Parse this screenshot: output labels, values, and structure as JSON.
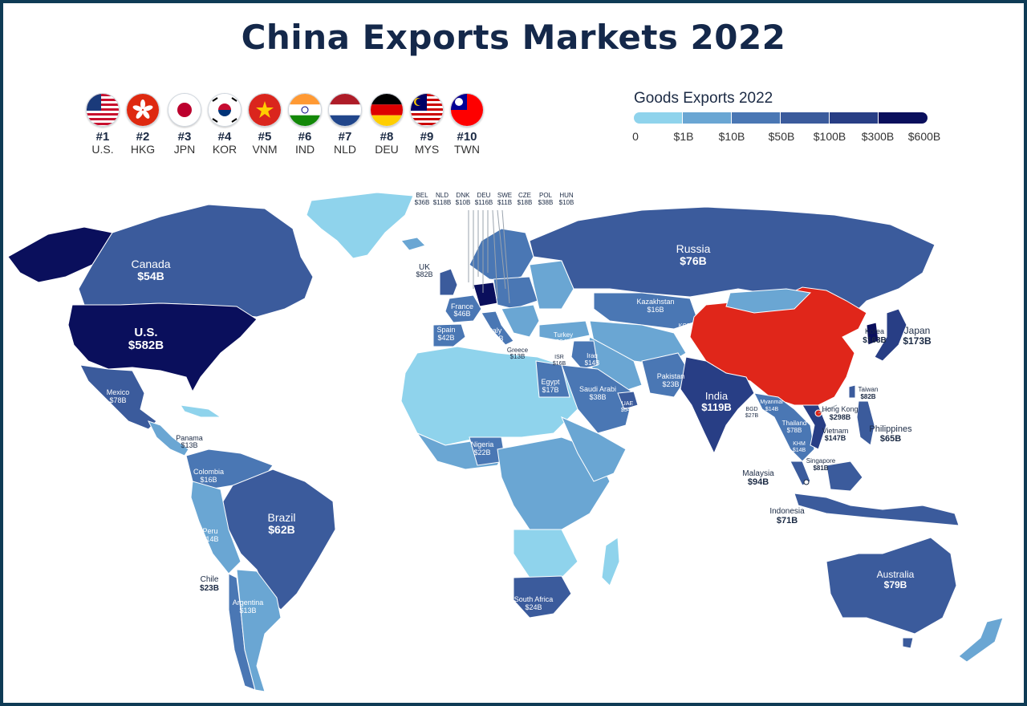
{
  "title": "China Exports Markets 2022",
  "top_markets": [
    {
      "rank": "#1",
      "code": "U.S.",
      "flag": "us-flag-icon"
    },
    {
      "rank": "#2",
      "code": "HKG",
      "flag": "hong-kong-flag-icon"
    },
    {
      "rank": "#3",
      "code": "JPN",
      "flag": "japan-flag-icon"
    },
    {
      "rank": "#4",
      "code": "KOR",
      "flag": "south-korea-flag-icon"
    },
    {
      "rank": "#5",
      "code": "VNM",
      "flag": "vietnam-flag-icon"
    },
    {
      "rank": "#6",
      "code": "IND",
      "flag": "india-flag-icon"
    },
    {
      "rank": "#7",
      "code": "NLD",
      "flag": "netherlands-flag-icon"
    },
    {
      "rank": "#8",
      "code": "DEU",
      "flag": "germany-flag-icon"
    },
    {
      "rank": "#9",
      "code": "MYS",
      "flag": "malaysia-flag-icon"
    },
    {
      "rank": "#10",
      "code": "TWN",
      "flag": "taiwan-flag-icon"
    }
  ],
  "legend": {
    "title": "Goods Exports 2022",
    "ticks": [
      "0",
      "$1B",
      "$10B",
      "$50B",
      "$100B",
      "$300B",
      "$600B"
    ],
    "colors": [
      "#8fd3ec",
      "#6aa6d3",
      "#4a77b4",
      "#3b5b9c",
      "#283e85",
      "#0a0f5c"
    ]
  },
  "highlight_color": "#e0261a",
  "europe_callouts": [
    {
      "code": "BEL",
      "value": "$36B"
    },
    {
      "code": "NLD",
      "value": "$118B"
    },
    {
      "code": "DNK",
      "value": "$10B"
    },
    {
      "code": "DEU",
      "value": "$116B"
    },
    {
      "code": "SWE",
      "value": "$11B"
    },
    {
      "code": "CZE",
      "value": "$18B"
    },
    {
      "code": "POL",
      "value": "$38B"
    },
    {
      "code": "HUN",
      "value": "$10B"
    }
  ],
  "countries": {
    "canada": {
      "name": "Canada",
      "value": "$54B"
    },
    "us": {
      "name": "U.S.",
      "value": "$582B"
    },
    "mexico": {
      "name": "Mexico",
      "value": "$78B"
    },
    "panama": {
      "name": "Panama",
      "value": "$13B"
    },
    "colombia": {
      "name": "Colombia",
      "value": "$16B"
    },
    "brazil": {
      "name": "Brazil",
      "value": "$62B"
    },
    "peru": {
      "name": "Peru",
      "value": "$14B"
    },
    "chile": {
      "name": "Chile",
      "value": "$23B"
    },
    "argentina": {
      "name": "Argentina",
      "value": "$13B"
    },
    "uk": {
      "name": "UK",
      "value": "$82B"
    },
    "france": {
      "name": "France",
      "value": "$46B"
    },
    "spain": {
      "name": "Spain",
      "value": "$42B"
    },
    "italy": {
      "name": "Italy",
      "value": "$51B"
    },
    "greece": {
      "name": "Greece",
      "value": "$13B"
    },
    "turkey": {
      "name": "Turkey",
      "value": "$34B"
    },
    "isr": {
      "name": "ISR",
      "value": "$16B"
    },
    "iraq": {
      "name": "Iraq",
      "value": "$14B"
    },
    "egypt": {
      "name": "Egypt",
      "value": "$17B"
    },
    "saudi": {
      "name": "Saudi Arabi",
      "value": "$38B"
    },
    "uae": {
      "name": "UAE",
      "value": "$54B"
    },
    "nigeria": {
      "name": "Nigeria",
      "value": "$22B"
    },
    "south_africa": {
      "name": "South Africa",
      "value": "$24B"
    },
    "russia": {
      "name": "Russia",
      "value": "$76B"
    },
    "kazakhstan": {
      "name": "Kazakhstan",
      "value": "$16B"
    },
    "kgz": {
      "name": "KGZ",
      "value": "$15B"
    },
    "pakistan": {
      "name": "Pakistan",
      "value": "$23B"
    },
    "india": {
      "name": "India",
      "value": "$119B"
    },
    "bgd": {
      "name": "BGD",
      "value": "$27B"
    },
    "myanmar": {
      "name": "Myanmar",
      "value": "$14B"
    },
    "thailand": {
      "name": "Thailand",
      "value": "$78B"
    },
    "khm": {
      "name": "KHM",
      "value": "$14B"
    },
    "vietnam": {
      "name": "Vietnam",
      "value": "$147B"
    },
    "hong_kong": {
      "name": "Hong Kong",
      "value": "$298B"
    },
    "taiwan": {
      "name": "Taiwan",
      "value": "$82B"
    },
    "korea": {
      "name": "Korea",
      "value": "$163B"
    },
    "japan": {
      "name": "Japan",
      "value": "$173B"
    },
    "philippines": {
      "name": "Philippines",
      "value": "$65B"
    },
    "malaysia": {
      "name": "Malaysia",
      "value": "$94B"
    },
    "singapore": {
      "name": "Singapore",
      "value": "$81B"
    },
    "indonesia": {
      "name": "Indonesia",
      "value": "$71B"
    },
    "australia": {
      "name": "Australia",
      "value": "$79B"
    }
  }
}
